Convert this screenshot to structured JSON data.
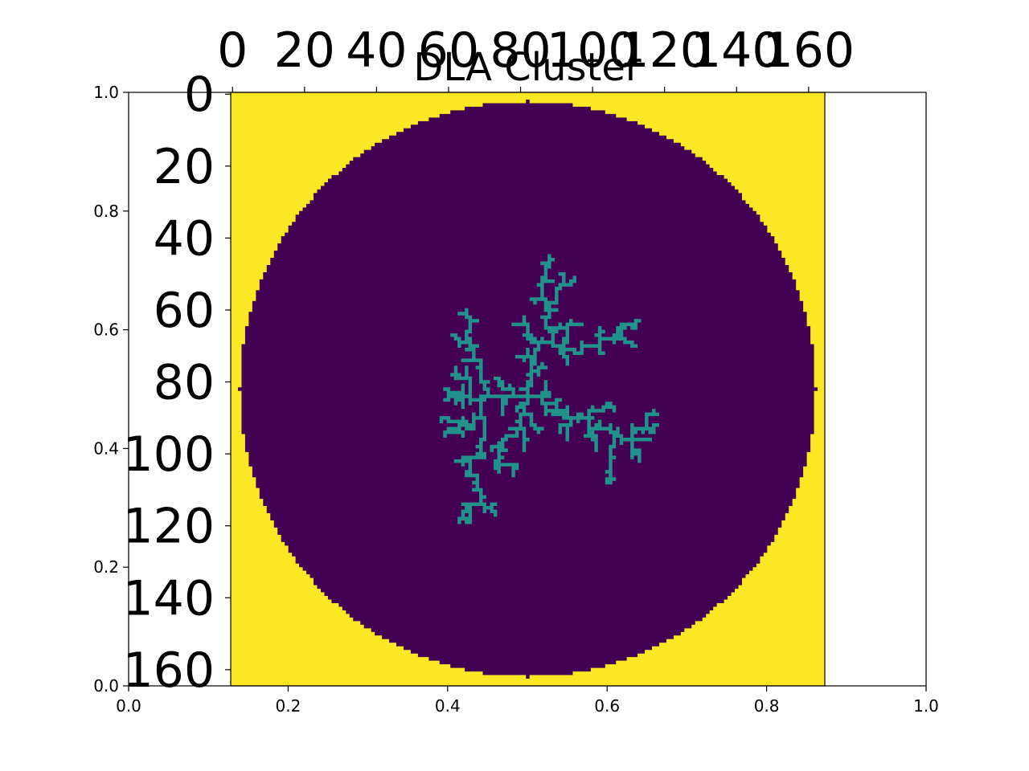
{
  "chart_data": {
    "type": "heatmap",
    "title": "DLA Cluster",
    "xlabel": "",
    "ylabel": "",
    "colormap": "viridis",
    "colors": {
      "outside": "#fde725",
      "background": "#440154",
      "cluster": "#21918c"
    },
    "image": {
      "rows": 165,
      "cols": 165,
      "mask_circle": {
        "center_col": 82,
        "center_row": 82,
        "radius": 80
      },
      "cluster_seed": {
        "col": 82,
        "row": 82
      },
      "cluster_particles": 700,
      "x_ticks": [
        "0",
        "20",
        "40",
        "60",
        "80",
        "100",
        "120",
        "140",
        "160"
      ],
      "y_ticks": [
        "0",
        "20",
        "40",
        "60",
        "80",
        "100",
        "120",
        "140",
        "160"
      ]
    },
    "outer_axes": {
      "xlim": [
        0.0,
        1.0
      ],
      "ylim": [
        0.0,
        1.0
      ],
      "x_ticks": [
        "0.0",
        "0.2",
        "0.4",
        "0.6",
        "0.8",
        "1.0"
      ],
      "y_ticks": [
        "0.0",
        "0.2",
        "0.4",
        "0.6",
        "0.8",
        "1.0"
      ]
    }
  }
}
